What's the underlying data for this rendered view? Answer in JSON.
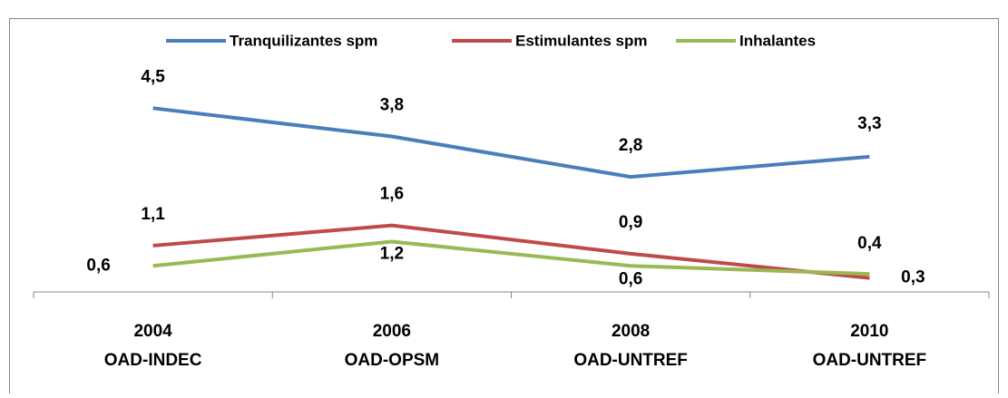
{
  "chart_data": {
    "type": "line",
    "categories": [
      [
        "2004",
        "OAD-INDEC"
      ],
      [
        "2006",
        "OAD-OPSM"
      ],
      [
        "2008",
        "OAD-UNTREF"
      ],
      [
        "2010",
        "OAD-UNTREF"
      ]
    ],
    "series": [
      {
        "name": "Tranquilizantes spm",
        "color": "#4a7ebb",
        "values": [
          4.5,
          3.8,
          2.8,
          3.3
        ],
        "value_labels": [
          "4,5",
          "3,8",
          "2,8",
          "3,3"
        ]
      },
      {
        "name": "Estimulantes spm",
        "color": "#be4b48",
        "values": [
          1.1,
          1.6,
          0.9,
          0.3
        ],
        "value_labels": [
          "1,1",
          "1,6",
          "0,9",
          "0,3"
        ]
      },
      {
        "name": "Inhalantes",
        "color": "#98b954",
        "values": [
          0.6,
          1.2,
          0.6,
          0.4
        ],
        "value_labels": [
          "0,6",
          "1,2",
          "0,6",
          "0,4"
        ]
      }
    ],
    "ylim": [
      0,
      5
    ],
    "legend": "top"
  }
}
